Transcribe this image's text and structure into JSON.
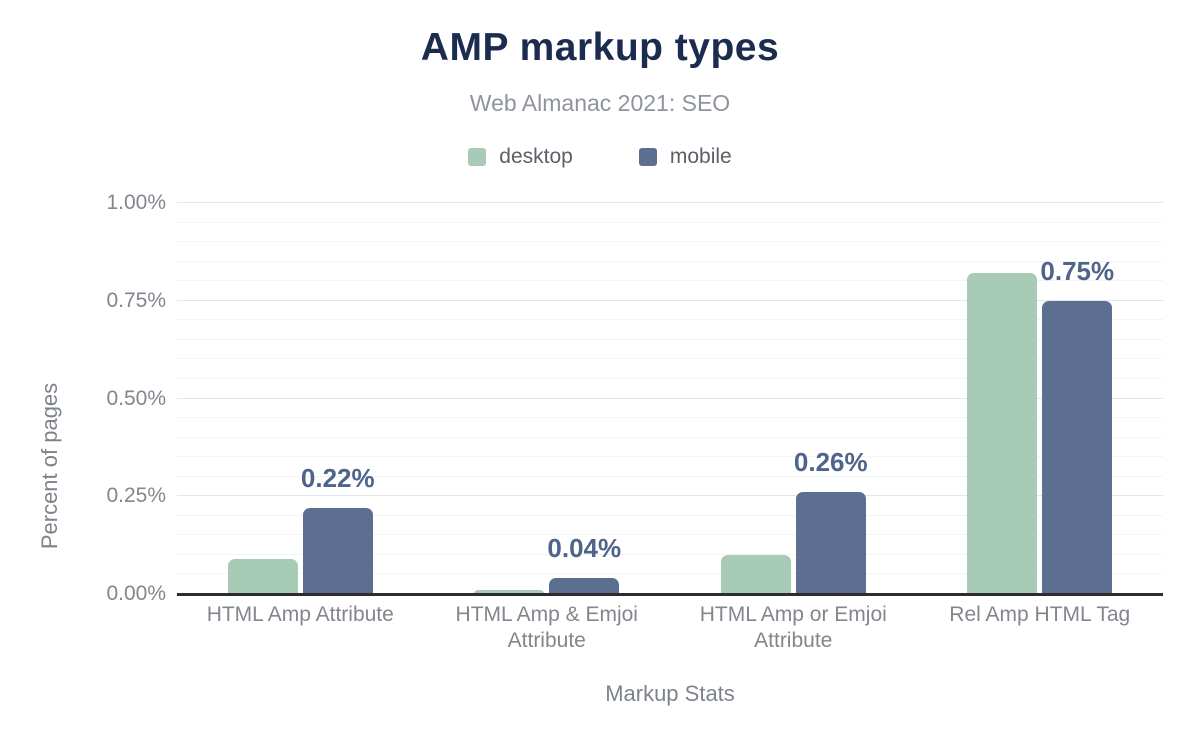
{
  "chart_data": {
    "type": "bar",
    "title": "AMP markup types",
    "subtitle": "Web Almanac 2021: SEO",
    "xlabel": "Markup Stats",
    "ylabel": "Percent of pages",
    "categories": [
      "HTML Amp Attribute",
      "HTML Amp & Emjoi Attribute",
      "HTML Amp or Emjoi Attribute",
      "Rel Amp HTML Tag"
    ],
    "series": [
      {
        "name": "desktop",
        "color": "#a7cbb7",
        "values": [
          0.09,
          0.01,
          0.1,
          0.82
        ]
      },
      {
        "name": "mobile",
        "color": "#5c6f90",
        "values": [
          0.22,
          0.04,
          0.26,
          0.75
        ],
        "data_labels": [
          "0.22%",
          "0.04%",
          "0.26%",
          "0.75%"
        ]
      }
    ],
    "ylim": [
      0,
      1.0
    ],
    "yticks": [
      {
        "value": 0.0,
        "label": "0.00%"
      },
      {
        "value": 0.25,
        "label": "0.25%"
      },
      {
        "value": 0.5,
        "label": "0.50%"
      },
      {
        "value": 0.75,
        "label": "0.75%"
      },
      {
        "value": 1.0,
        "label": "1.00%"
      }
    ],
    "minor_grid_step": 0.05,
    "major_grid_step": 0.25,
    "grid": true,
    "legend_position": "top"
  },
  "colors": {
    "title": "#1b2c4e",
    "subtitle": "#8f949c",
    "legend_text": "#5b6067",
    "axis_title": "#7e838b",
    "tick_label": "#82868d",
    "data_label": "#4f648a",
    "axis_line": "#2d2d2d",
    "grid_major": "#e3e5e9",
    "grid_minor": "#f3f4f6",
    "desktop": "#a7cbb7",
    "mobile": "#5c6f90"
  }
}
